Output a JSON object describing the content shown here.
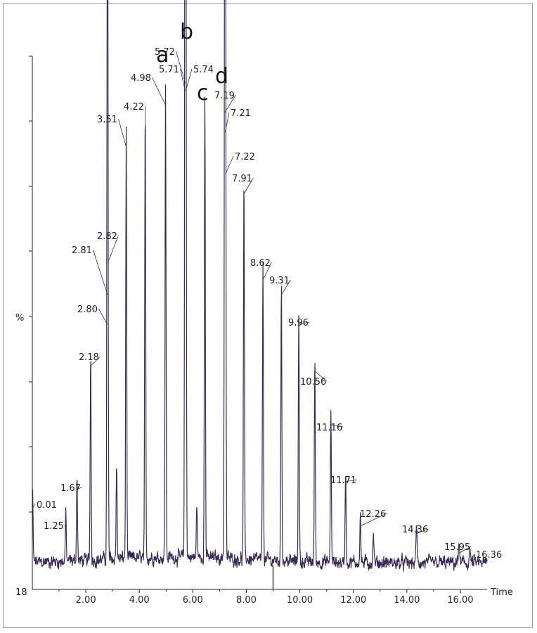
{
  "chart_data": {
    "type": "line",
    "title": "",
    "xlabel": "Time",
    "ylabel": "%",
    "y_axis_min_label": "18",
    "xlim": [
      0,
      17
    ],
    "ylim": [
      0,
      100
    ],
    "x_ticks": [
      "2.00",
      "4.00",
      "6.00",
      "8.00",
      "10.00",
      "12.00",
      "14.00",
      "16.00"
    ],
    "line_color": "#3a2a55",
    "peaks": [
      {
        "label": "0.01",
        "x": 0.01,
        "y": 13.8
      },
      {
        "label": "1.25",
        "x": 1.25,
        "y": 9.5
      },
      {
        "label": "1.67",
        "x": 1.67,
        "y": 17.5
      },
      {
        "label": "2.18",
        "x": 2.18,
        "y": 42.5
      },
      {
        "label": "2.80",
        "x": 2.8,
        "y": 51.0
      },
      {
        "label": "2.81",
        "x": 2.81,
        "y": 57.0
      },
      {
        "label": "2.82",
        "x": 2.82,
        "y": 63.5
      },
      {
        "label": "3.51",
        "x": 3.51,
        "y": 87.0
      },
      {
        "label": "4.22",
        "x": 4.22,
        "y": 91.0
      },
      {
        "label": "4.98",
        "x": 4.98,
        "y": 95.5
      },
      {
        "label": "5.71",
        "x": 5.71,
        "y": 98.5
      },
      {
        "label": "5.72",
        "x": 5.72,
        "y": 100.0
      },
      {
        "label": "5.74",
        "x": 5.74,
        "y": 98.5
      },
      {
        "label": "7.19",
        "x": 7.19,
        "y": 94.0
      },
      {
        "label": "7.21",
        "x": 7.21,
        "y": 90.0
      },
      {
        "label": "7.22",
        "x": 7.22,
        "y": 81.5
      },
      {
        "label": "7.91",
        "x": 7.91,
        "y": 77.5
      },
      {
        "label": "8.62",
        "x": 8.62,
        "y": 60.0
      },
      {
        "label": "9.31",
        "x": 9.31,
        "y": 57.0
      },
      {
        "label": "9.96",
        "x": 9.96,
        "y": 51.0
      },
      {
        "label": "10.56",
        "x": 10.56,
        "y": 41.5
      },
      {
        "label": "11.16",
        "x": 11.16,
        "y": 30.5
      },
      {
        "label": "11.71",
        "x": 11.71,
        "y": 19.0
      },
      {
        "label": "12.26",
        "x": 12.26,
        "y": 10.0
      },
      {
        "label": "14.36",
        "x": 14.36,
        "y": 8.5
      },
      {
        "label": "15.95",
        "x": 15.95,
        "y": 4.5
      },
      {
        "label": "16.36",
        "x": 16.36,
        "y": 3.0
      }
    ],
    "unlabeled_peaks": [
      {
        "x": 3.15,
        "y": 19.0
      },
      {
        "x": 6.45,
        "y": 93.5
      },
      {
        "x": 6.15,
        "y": 11.0
      },
      {
        "x": 12.75,
        "y": 6.0
      }
    ],
    "annotations": [
      {
        "text": "a",
        "x": 4.98
      },
      {
        "text": "b",
        "x": 5.72
      },
      {
        "text": "c",
        "x": 6.45
      },
      {
        "text": "d",
        "x": 7.19
      }
    ]
  }
}
